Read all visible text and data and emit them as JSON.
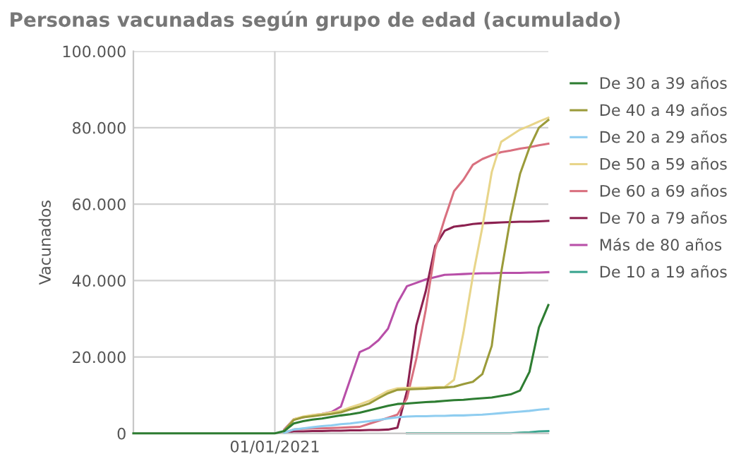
{
  "chart_data": {
    "type": "line",
    "title": "Personas vacunadas según grupo de edad (acumulado)",
    "ylabel": "Vacunados",
    "categories": [
      null,
      null,
      null,
      null,
      null,
      null,
      null,
      null,
      null,
      null,
      null,
      null,
      null,
      null,
      null,
      "01/01/2021",
      null,
      null,
      null,
      null,
      null,
      null,
      null,
      null,
      null,
      null,
      null,
      null,
      null,
      null,
      null,
      null,
      null,
      null,
      null,
      null,
      null,
      null,
      null,
      null,
      null,
      null,
      null,
      null,
      null
    ],
    "ylim": [
      0,
      100000
    ],
    "yticks": [
      {
        "value": 0,
        "label": "0"
      },
      {
        "value": 20000,
        "label": "20.000"
      },
      {
        "value": 40000,
        "label": "40.000"
      },
      {
        "value": 60000,
        "label": "60.000"
      },
      {
        "value": 80000,
        "label": "80.000"
      },
      {
        "value": 100000,
        "label": "100.000"
      }
    ],
    "grid": true,
    "legend": "right",
    "line_style": "solid",
    "marker": "none",
    "series": [
      {
        "name": "De 30 a 39 años",
        "color": "#2e7d32",
        "values": [
          0,
          0,
          0,
          0,
          0,
          0,
          0,
          0,
          0,
          0,
          0,
          0,
          0,
          0,
          0,
          0,
          600,
          2600,
          3200,
          3600,
          3900,
          4300,
          4700,
          5000,
          5400,
          6000,
          6600,
          7200,
          7700,
          7800,
          8000,
          8200,
          8300,
          8500,
          8700,
          8800,
          9000,
          9200,
          9400,
          9800,
          10200,
          11200,
          16100,
          27700,
          33600
        ]
      },
      {
        "name": "De 40 a 49 años",
        "color": "#9b9b3a",
        "values": [
          null,
          null,
          null,
          null,
          null,
          null,
          null,
          null,
          null,
          null,
          null,
          null,
          null,
          null,
          null,
          null,
          800,
          3500,
          4200,
          4500,
          4800,
          5100,
          5500,
          6300,
          7000,
          7800,
          9200,
          10500,
          11400,
          11500,
          11600,
          11700,
          11900,
          12000,
          12200,
          12900,
          13500,
          15500,
          22900,
          42100,
          56500,
          67900,
          74800,
          80000,
          82000
        ]
      },
      {
        "name": "De 20 a 29 años",
        "color": "#8fcdf0",
        "values": [
          null,
          null,
          null,
          null,
          null,
          null,
          null,
          null,
          null,
          null,
          null,
          null,
          null,
          null,
          null,
          null,
          200,
          1000,
          1300,
          1600,
          1900,
          2100,
          2400,
          2600,
          2900,
          3200,
          3500,
          3900,
          4200,
          4400,
          4500,
          4500,
          4600,
          4600,
          4700,
          4700,
          4800,
          4900,
          5100,
          5300,
          5500,
          5700,
          5900,
          6200,
          6400
        ]
      },
      {
        "name": "De 50 a 59 años",
        "color": "#e8d58a",
        "values": [
          null,
          null,
          null,
          null,
          null,
          null,
          null,
          null,
          null,
          null,
          null,
          null,
          null,
          null,
          null,
          null,
          800,
          3700,
          4400,
          4800,
          5100,
          5500,
          5900,
          6800,
          7600,
          8500,
          9800,
          11100,
          11800,
          11900,
          11900,
          12000,
          12100,
          12100,
          14000,
          26400,
          41200,
          53900,
          68400,
          76300,
          77900,
          79500,
          80500,
          81600,
          82600
        ]
      },
      {
        "name": "De 60 a 69 años",
        "color": "#d9707f",
        "values": [
          null,
          null,
          null,
          null,
          null,
          null,
          null,
          null,
          null,
          null,
          null,
          null,
          null,
          null,
          null,
          null,
          200,
          1000,
          1200,
          1300,
          1300,
          1400,
          1500,
          1600,
          1700,
          2500,
          3300,
          4100,
          4900,
          9100,
          19500,
          32300,
          48100,
          56100,
          63400,
          66400,
          70300,
          71800,
          72800,
          73600,
          74000,
          74500,
          74900,
          75400,
          75800
        ]
      },
      {
        "name": "De 70 a 79 años",
        "color": "#8c2150",
        "values": [
          null,
          null,
          null,
          null,
          null,
          null,
          null,
          null,
          null,
          null,
          null,
          null,
          null,
          null,
          null,
          null,
          100,
          500,
          500,
          600,
          600,
          700,
          700,
          800,
          800,
          900,
          900,
          1000,
          1500,
          11000,
          28200,
          37200,
          49000,
          53000,
          54100,
          54400,
          54800,
          55000,
          55100,
          55200,
          55300,
          55400,
          55400,
          55500,
          55600
        ]
      },
      {
        "name": "Más de 80 años",
        "color": "#b84fa8",
        "values": [
          null,
          null,
          null,
          null,
          null,
          null,
          null,
          null,
          null,
          null,
          null,
          null,
          null,
          null,
          null,
          null,
          1000,
          3700,
          4200,
          4700,
          5100,
          5600,
          7000,
          14200,
          21300,
          22400,
          24400,
          27400,
          34100,
          38500,
          39400,
          40300,
          40900,
          41500,
          41600,
          41700,
          41800,
          41900,
          41900,
          42000,
          42000,
          42000,
          42100,
          42100,
          42200
        ]
      },
      {
        "name": "De 10 a 19 años",
        "color": "#3aa58f",
        "values": [
          null,
          null,
          null,
          null,
          null,
          null,
          null,
          null,
          null,
          null,
          null,
          null,
          null,
          null,
          null,
          null,
          null,
          null,
          null,
          null,
          null,
          null,
          null,
          null,
          null,
          null,
          null,
          null,
          null,
          0,
          0,
          0,
          0,
          0,
          0,
          0,
          0,
          0,
          0,
          0,
          0,
          200,
          300,
          500,
          600
        ]
      }
    ]
  }
}
